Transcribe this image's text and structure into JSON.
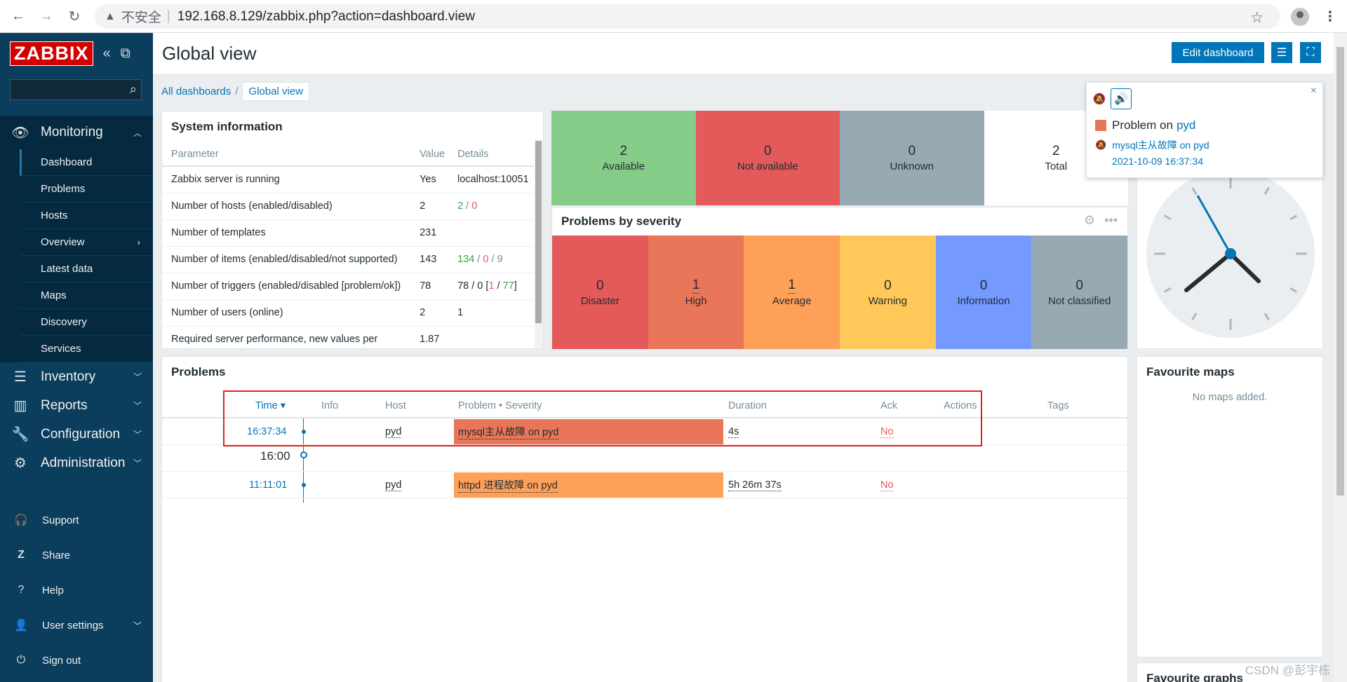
{
  "browser": {
    "insecure_label": "不安全",
    "url": "192.168.8.129/zabbix.php?action=dashboard.view"
  },
  "sidebar": {
    "logo": "ZABBIX",
    "search_placeholder": "",
    "monitoring": {
      "label": "Monitoring",
      "items": [
        {
          "label": "Dashboard"
        },
        {
          "label": "Problems"
        },
        {
          "label": "Hosts"
        },
        {
          "label": "Overview"
        },
        {
          "label": "Latest data"
        },
        {
          "label": "Maps"
        },
        {
          "label": "Discovery"
        },
        {
          "label": "Services"
        }
      ]
    },
    "sections": [
      {
        "label": "Inventory"
      },
      {
        "label": "Reports"
      },
      {
        "label": "Configuration"
      },
      {
        "label": "Administration"
      }
    ],
    "bottom": [
      {
        "label": "Support"
      },
      {
        "label": "Share"
      },
      {
        "label": "Help"
      },
      {
        "label": "User settings"
      },
      {
        "label": "Sign out"
      }
    ]
  },
  "header": {
    "title": "Global view",
    "edit_dashboard": "Edit dashboard"
  },
  "breadcrumb": {
    "all": "All dashboards",
    "separator": "/",
    "current": "Global view"
  },
  "system_info": {
    "title": "System information",
    "columns": [
      "Parameter",
      "Value",
      "Details"
    ],
    "rows": [
      {
        "param": "Zabbix server is running",
        "value": "Yes",
        "details": "localhost:10051"
      },
      {
        "param": "Number of hosts (enabled/disabled)",
        "value": "2",
        "d1": "2",
        "d2": "0"
      },
      {
        "param": "Number of templates",
        "value": "231",
        "details": ""
      },
      {
        "param": "Number of items (enabled/disabled/not supported)",
        "value": "143",
        "d1": "134",
        "d2": "0",
        "d3": "9"
      },
      {
        "param": "Number of triggers (enabled/disabled [problem/ok])",
        "value": "78",
        "d1": "78 / 0 [",
        "d2": "1",
        "d3": "77"
      },
      {
        "param": "Number of users (online)",
        "value": "2",
        "details": "1"
      },
      {
        "param": "Required server performance, new values per",
        "value": "1.87",
        "details": ""
      }
    ]
  },
  "host_availability": {
    "cells": [
      {
        "num": "2",
        "label": "Available",
        "color": "#86cc89"
      },
      {
        "num": "0",
        "label": "Not available",
        "color": "#e45959"
      },
      {
        "num": "0",
        "label": "Unknown",
        "color": "#97aab3"
      },
      {
        "num": "2",
        "label": "Total",
        "color": "#ffffff"
      }
    ]
  },
  "problems_by_severity": {
    "title": "Problems by severity",
    "cells": [
      {
        "num": "0",
        "label": "Disaster",
        "color": "#e45959"
      },
      {
        "num": "1",
        "label": "High",
        "color": "#e97659"
      },
      {
        "num": "1",
        "label": "Average",
        "color": "#ffa059"
      },
      {
        "num": "0",
        "label": "Warning",
        "color": "#ffc859"
      },
      {
        "num": "0",
        "label": "Information",
        "color": "#7499ff"
      },
      {
        "num": "0",
        "label": "Not classified",
        "color": "#97aab3"
      }
    ]
  },
  "notification": {
    "title_prefix": "Problem on",
    "host": "pyd",
    "message": "mysql主从故障 on pyd",
    "time": "2021-10-09 16:37:34"
  },
  "problems": {
    "title": "Problems",
    "columns": {
      "time": "Time ▾",
      "info": "Info",
      "host": "Host",
      "problem": "Problem • Severity",
      "duration": "Duration",
      "ack": "Ack",
      "actions": "Actions",
      "tags": "Tags"
    },
    "timeline_label": "16:00",
    "rows": [
      {
        "time": "16:37:34",
        "host": "pyd",
        "problem": "mysql主从故障 on pyd",
        "duration": "4s",
        "ack": "No",
        "color": "#e97659"
      },
      {
        "time": "11:11:01",
        "host": "pyd",
        "problem": "httpd 进程故障 on pyd",
        "duration": "5h 26m 37s",
        "ack": "No",
        "color": "#ffa059"
      }
    ]
  },
  "favourite_maps": {
    "title": "Favourite maps",
    "empty": "No maps added."
  },
  "favourite_graphs": {
    "title": "Favourite graphs"
  },
  "watermark": "CSDN @彭宇栋"
}
